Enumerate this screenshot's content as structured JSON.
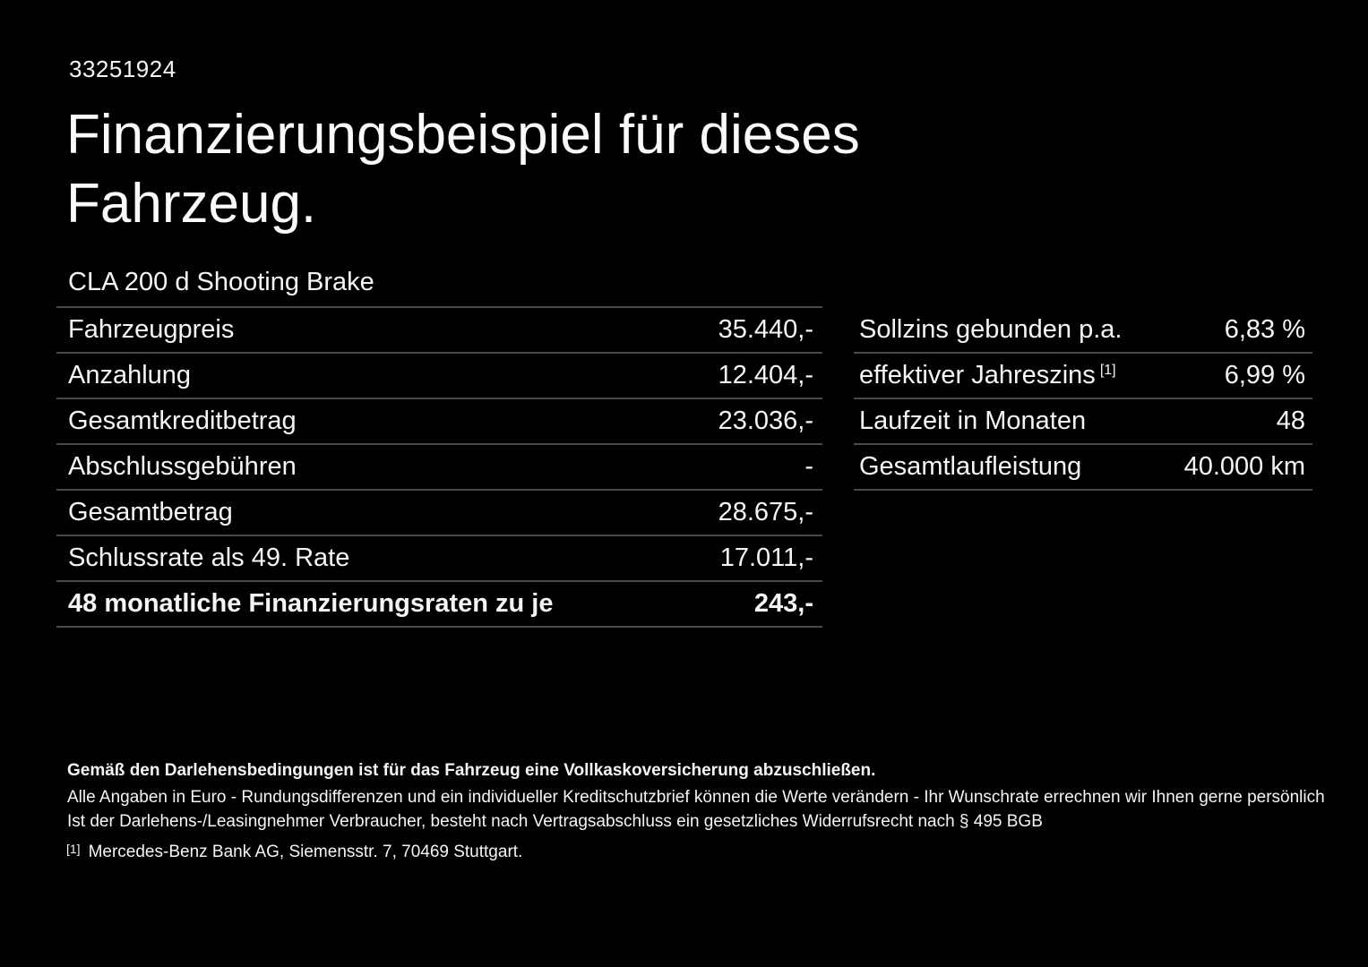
{
  "page": {
    "background_color": "#000000",
    "text_color": "#f5f5f5",
    "divider_color": "#4a4a4a"
  },
  "header": {
    "doc_number": "33251924",
    "title": "Finanzierungsbeispiel für dieses Fahrzeug."
  },
  "vehicle": {
    "model": "CLA 200 d Shooting Brake"
  },
  "finance_table": {
    "rows": [
      {
        "label": "Fahrzeugpreis",
        "value": "35.440,-"
      },
      {
        "label": "Anzahlung",
        "value": "12.404,-"
      },
      {
        "label": "Gesamtkreditbetrag",
        "value": "23.036,-"
      },
      {
        "label": "Abschlussgebühren",
        "value": "-"
      },
      {
        "label": "Gesamtbetrag",
        "value": "28.675,-"
      },
      {
        "label": "Schlussrate als 49. Rate",
        "value": "17.011,-"
      },
      {
        "label": "48 monatliche Finanzierungsraten zu je",
        "value": "243,-"
      }
    ]
  },
  "conditions_table": {
    "rows": [
      {
        "label": "Sollzins gebunden p.a.",
        "value": "6,83 %"
      },
      {
        "label": "effektiver Jahreszins",
        "sup": "[1]",
        "value": "6,99 %"
      },
      {
        "label": "Laufzeit in Monaten",
        "value": "48"
      },
      {
        "label": "Gesamtlaufleistung",
        "value": "40.000 km"
      }
    ]
  },
  "footer": {
    "insurance_note": "Gemäß den Darlehensbedingungen ist für das Fahrzeug eine Vollkaskoversicherung abzuschließen.",
    "note_line_2": "Alle Angaben in Euro - Rundungsdifferenzen und ein individueller Kreditschutzbrief können die Werte verändern - Ihr Wunschrate errechnen wir Ihnen gerne persönlich",
    "note_line_3": "Ist der Darlehens-/Leasingnehmer Verbraucher, besteht nach Vertragsabschluss ein gesetzliches Widerrufsrecht nach § 495 BGB",
    "footnote_marker": "[1]",
    "footnote_text": "Mercedes-Benz Bank AG, Siemensstr. 7, 70469 Stuttgart."
  }
}
